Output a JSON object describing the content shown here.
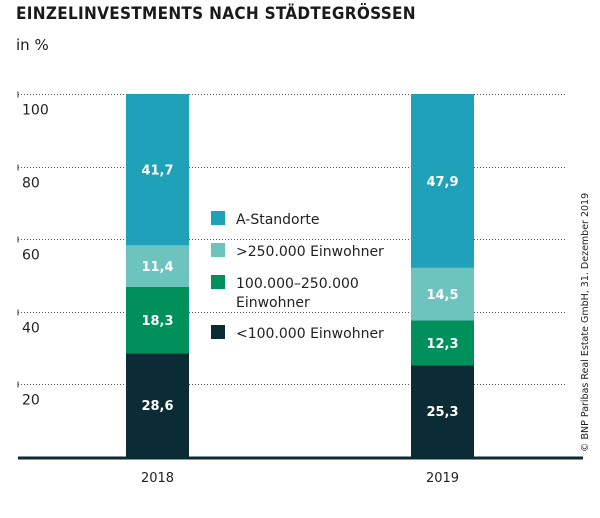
{
  "chart_data": {
    "type": "bar",
    "stacked": true,
    "title": "EINZELINVESTMENTS NACH STÄDTEGRÖSSEN",
    "ylabel": "in %",
    "categories": [
      "2018",
      "2019"
    ],
    "ylim": [
      0,
      100
    ],
    "yticks": [
      20,
      40,
      60,
      80,
      100
    ],
    "grid": true,
    "legend_position": "center",
    "series": [
      {
        "name": "<100.000 Einwohner",
        "color": "#0b2b35",
        "values": [
          28.6,
          25.3
        ],
        "labels": [
          "28,6",
          "25,3"
        ]
      },
      {
        "name": "100.000–250.000 Einwohner",
        "color": "#00905c",
        "values": [
          18.3,
          12.3
        ],
        "labels": [
          "18,3",
          "12,3"
        ]
      },
      {
        "name": ">250.000 Einwohner",
        "color": "#6dc4be",
        "values": [
          11.4,
          14.5
        ],
        "labels": [
          "11,4",
          "14,5"
        ]
      },
      {
        "name": "A-Standorte",
        "color": "#1fa2b9",
        "values": [
          41.7,
          47.9
        ],
        "labels": [
          "41,7",
          "47,9"
        ]
      }
    ],
    "legend": [
      {
        "lines": [
          "A-Standorte"
        ],
        "color": "#1fa2b9"
      },
      {
        "lines": [
          ">250.000 Einwohner"
        ],
        "color": "#6dc4be"
      },
      {
        "lines": [
          "100.000–250.000",
          "Einwohner"
        ],
        "color": "#00905c"
      },
      {
        "lines": [
          "<100.000 Einwohner"
        ],
        "color": "#0b2b35"
      }
    ]
  },
  "source": "© BNP Paribas Real Estate GmbH, 31. Dezember 2019"
}
